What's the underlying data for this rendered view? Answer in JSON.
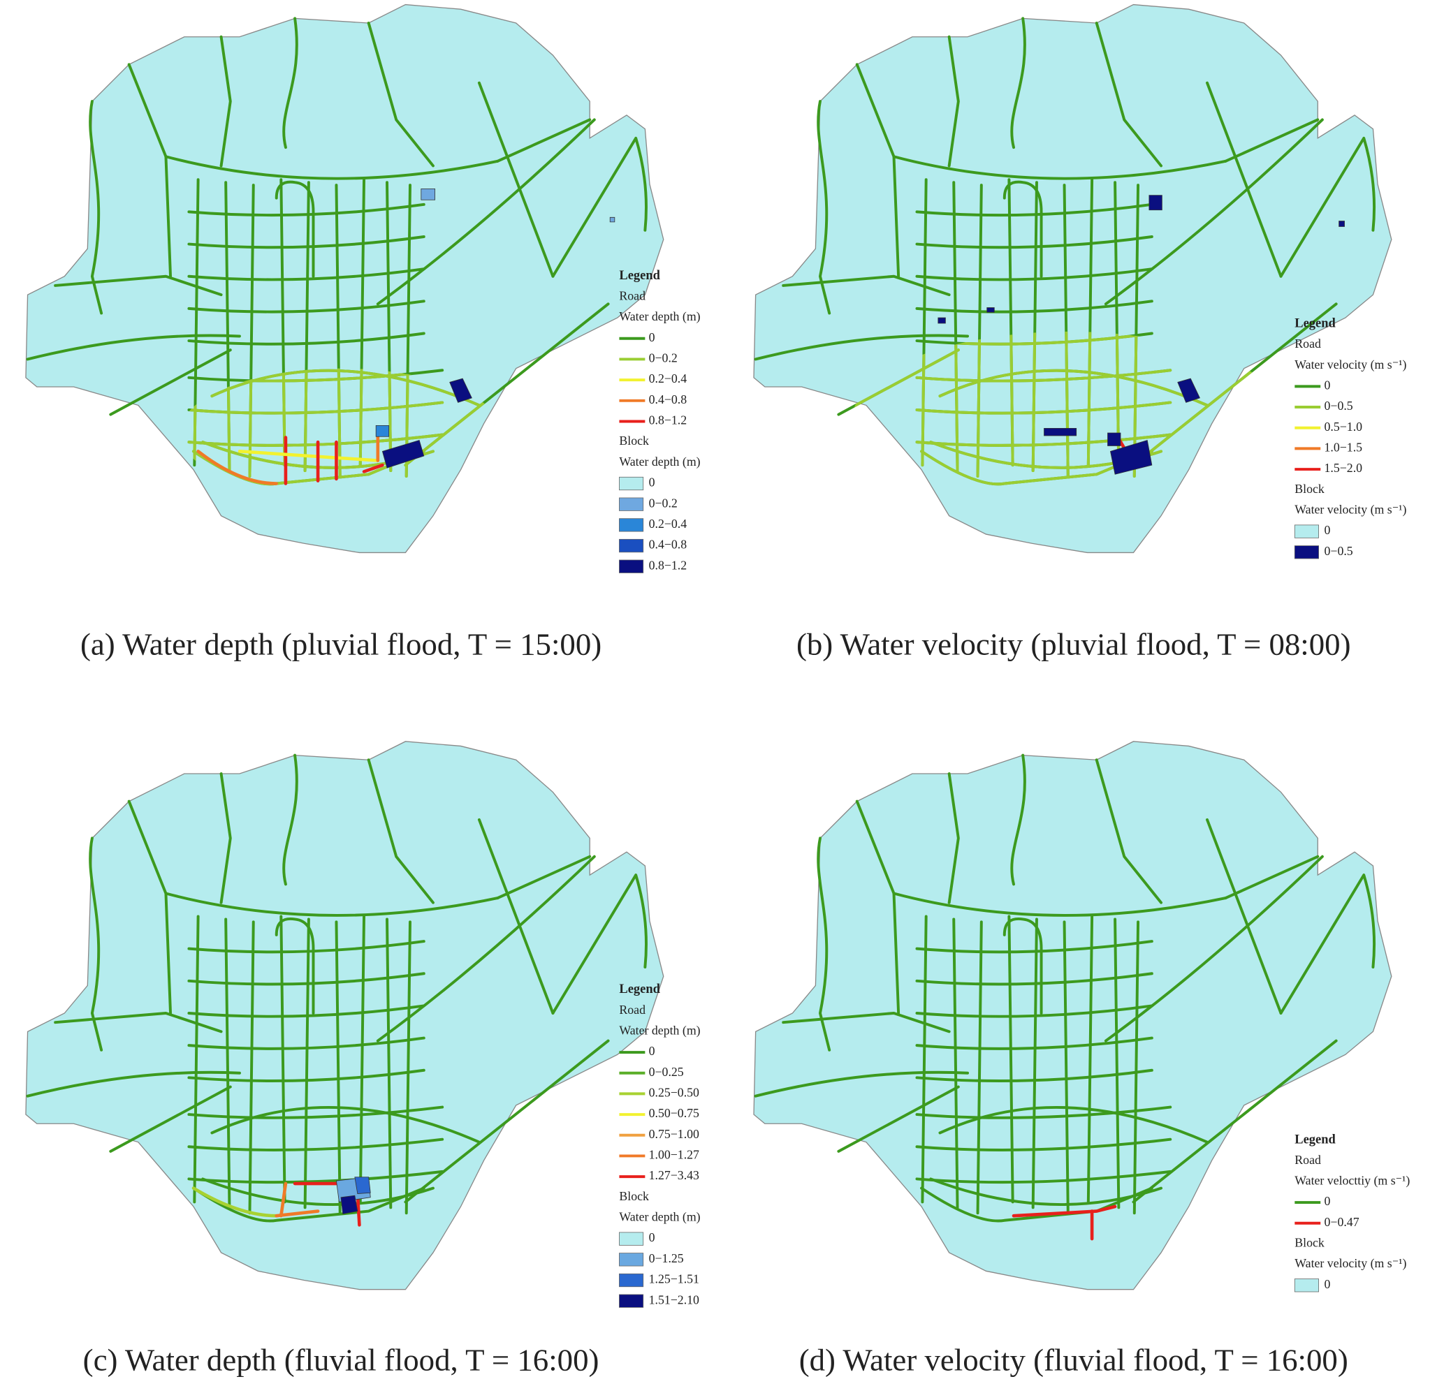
{
  "panels": [
    {
      "caption": "(a) Water depth (pluvial flood, T = 15:00)",
      "legend": {
        "title": "Legend",
        "road_heading": "Road",
        "road_subtitle": "Water depth (m)",
        "road_items": [
          {
            "label": "0",
            "color": "#3c9a1e"
          },
          {
            "label": "0−0.2",
            "color": "#9acd32"
          },
          {
            "label": "0.2−0.4",
            "color": "#f2f230"
          },
          {
            "label": "0.4−0.8",
            "color": "#f07a28"
          },
          {
            "label": "0.8−1.2",
            "color": "#e8201c"
          }
        ],
        "block_heading": "Block",
        "block_subtitle": "Water depth (m)",
        "block_items": [
          {
            "label": "0",
            "color": "#b5ecee"
          },
          {
            "label": "0−0.2",
            "color": "#6fa8e0"
          },
          {
            "label": "0.2−0.4",
            "color": "#2a86d8"
          },
          {
            "label": "0.4−0.8",
            "color": "#1a4fc0"
          },
          {
            "label": "0.8−1.2",
            "color": "#0a0f80"
          }
        ]
      }
    },
    {
      "caption": "(b) Water velocity (pluvial flood, T = 08:00)",
      "legend": {
        "title": "Legend",
        "road_heading": "Road",
        "road_subtitle": "Water velocity (m s⁻¹)",
        "road_items": [
          {
            "label": "0",
            "color": "#3c9a1e"
          },
          {
            "label": "0−0.5",
            "color": "#9acd32"
          },
          {
            "label": "0.5−1.0",
            "color": "#f2f230"
          },
          {
            "label": "1.0−1.5",
            "color": "#f07a28"
          },
          {
            "label": "1.5−2.0",
            "color": "#e8201c"
          }
        ],
        "block_heading": "Block",
        "block_subtitle": "Water velocity (m s⁻¹)",
        "block_items": [
          {
            "label": "0",
            "color": "#b5ecee"
          },
          {
            "label": "0−0.5",
            "color": "#0a0f80"
          }
        ]
      }
    },
    {
      "caption": "(c) Water depth (fluvial flood, T = 16:00)",
      "legend": {
        "title": "Legend",
        "road_heading": "Road",
        "road_subtitle": "Water depth (m)",
        "road_items": [
          {
            "label": "0",
            "color": "#3c9a1e"
          },
          {
            "label": "0−0.25",
            "color": "#5aae28"
          },
          {
            "label": "0.25−0.50",
            "color": "#a8d232"
          },
          {
            "label": "0.50−0.75",
            "color": "#f2f230"
          },
          {
            "label": "0.75−1.00",
            "color": "#f0a040"
          },
          {
            "label": "1.00−1.27",
            "color": "#f07a28"
          },
          {
            "label": "1.27−3.43",
            "color": "#e8201c"
          }
        ],
        "block_heading": "Block",
        "block_subtitle": "Water depth (m)",
        "block_items": [
          {
            "label": "0",
            "color": "#b5ecee"
          },
          {
            "label": "0−1.25",
            "color": "#6aa8e0"
          },
          {
            "label": "1.25−1.51",
            "color": "#2a68d0"
          },
          {
            "label": "1.51−2.10",
            "color": "#0a0f80"
          }
        ]
      }
    },
    {
      "caption": "(d) Water velocity (fluvial flood, T = 16:00)",
      "legend": {
        "title": "Legend",
        "road_heading": "Road",
        "road_subtitle": "Water velocttiy (m s⁻¹)",
        "road_items": [
          {
            "label": "0",
            "color": "#3c9a1e"
          },
          {
            "label": "0−0.47",
            "color": "#e8201c"
          }
        ],
        "block_heading": "Block",
        "block_subtitle": "Water velocity (m s⁻¹)",
        "block_items": [
          {
            "label": "0",
            "color": "#b5ecee"
          }
        ]
      }
    }
  ]
}
